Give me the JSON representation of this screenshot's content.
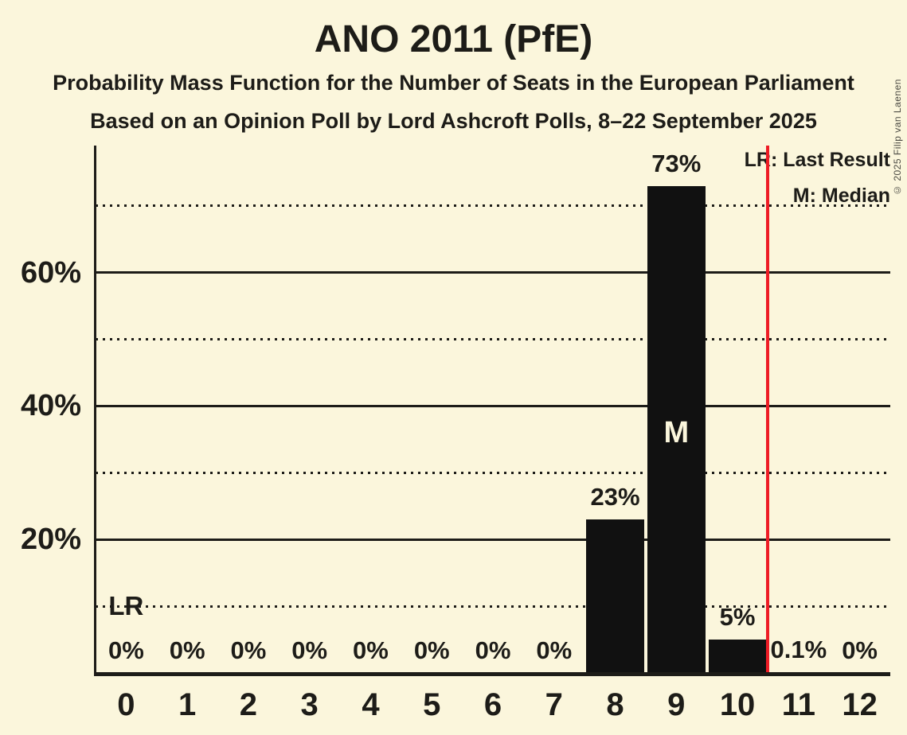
{
  "header": {
    "title": "ANO 2011 (PfE)",
    "subtitle1": "Probability Mass Function for the Number of Seats in the European Parliament",
    "subtitle2": "Based on an Opinion Poll by Lord Ashcroft Polls, 8–22 September 2025"
  },
  "copyright": "© 2025 Filip van Laenen",
  "legend": {
    "last_result": "LR: Last Result",
    "median": "M: Median"
  },
  "colors": {
    "background": "#FBF6DC",
    "text": "#1D1C18",
    "bar": "#111111",
    "bar_inner_label": "#FBF6DC",
    "last_result_line": "#EE1C25",
    "copyright_text": "#4B4A43"
  },
  "chart_data": {
    "type": "bar",
    "title": "ANO 2011 (PfE)",
    "xlabel": "",
    "ylabel": "",
    "categories": [
      "0",
      "1",
      "2",
      "3",
      "4",
      "5",
      "6",
      "7",
      "8",
      "9",
      "10",
      "11",
      "12"
    ],
    "values": [
      0,
      0,
      0,
      0,
      0,
      0,
      0,
      0,
      23,
      73,
      5,
      0.1,
      0
    ],
    "value_labels": [
      "0%",
      "0%",
      "0%",
      "0%",
      "0%",
      "0%",
      "0%",
      "0%",
      "23%",
      "73%",
      "5%",
      "0.1%",
      "0%"
    ],
    "y_axis": {
      "range": [
        0,
        79
      ],
      "tick_labels": [
        {
          "value": 20,
          "label": "20%"
        },
        {
          "value": 40,
          "label": "40%"
        },
        {
          "value": 60,
          "label": "60%"
        }
      ],
      "solid_gridlines": [
        20,
        40,
        60
      ],
      "dotted_gridlines": [
        10,
        30,
        50,
        70
      ]
    },
    "median": {
      "category": "9",
      "marker": "M"
    },
    "last_result": {
      "label": "LR",
      "label_category": "0",
      "line_between_categories": [
        "10",
        "11"
      ],
      "line_x": 10.5
    },
    "grid": true,
    "legend_position": "top-right"
  }
}
